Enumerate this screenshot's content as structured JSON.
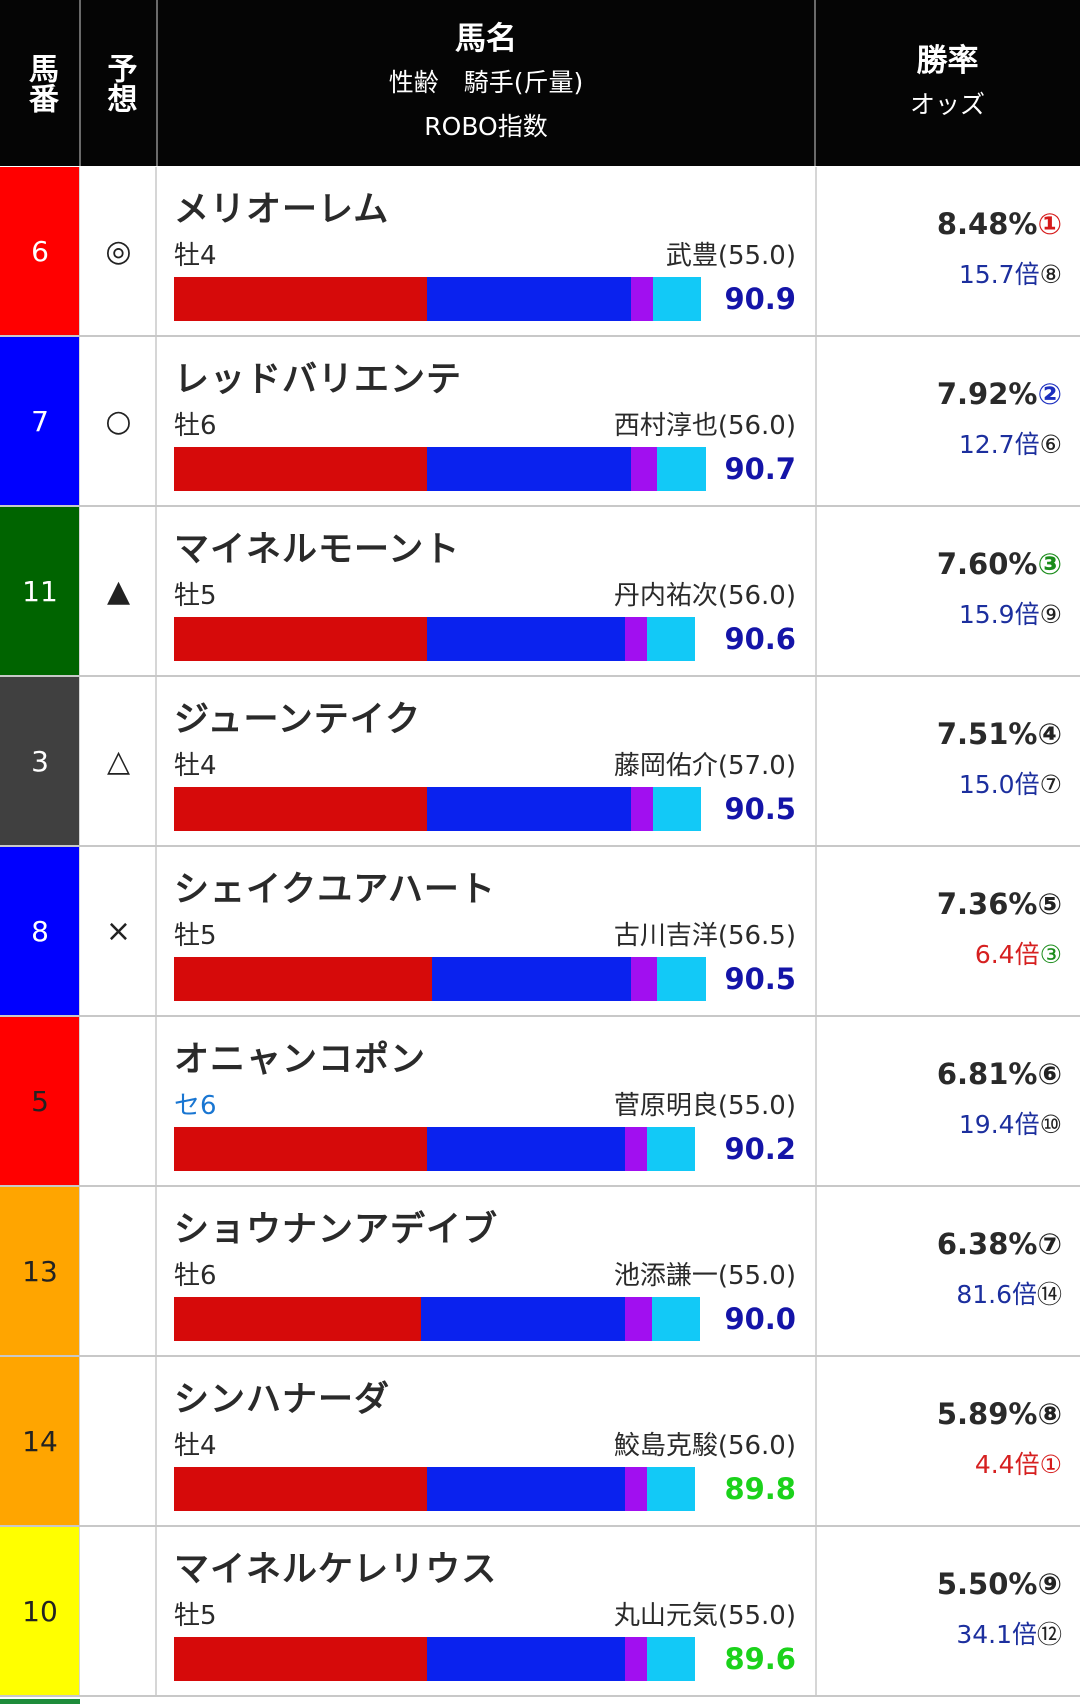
{
  "header": {
    "col_number": "馬番",
    "col_mark": "予想",
    "col_name_line1": "馬名",
    "col_name_line2": "性齢　騎手(斤量)",
    "col_name_line3": "ROBO指数",
    "col_rate_line1": "勝率",
    "col_rate_line2": "オッズ"
  },
  "colors": {
    "bar_red": "#d60a0a",
    "bar_blue": "#0a22ee",
    "bar_purple": "#a10ff0",
    "bar_cyan": "#12c9f7",
    "index_blue": "#1414a8",
    "index_green": "#1bd21b"
  },
  "rows": [
    {
      "num": "6",
      "gate_color": "#ff0000",
      "num_text_color": "#ffffff",
      "mark": "◎",
      "name": "メリオーレム",
      "sex_age": "牡4",
      "jockey": "武豊(55.0)",
      "robo": "90.9",
      "robo_color": "blue",
      "win_rate": "8.48%",
      "rank": "①",
      "rank_color": "#d61a1a",
      "odds": "15.7倍",
      "odds_color": "blue",
      "odds_rank": "⑧",
      "odds_rank_color": "#222222",
      "bar": [
        253,
        204,
        22,
        48
      ]
    },
    {
      "num": "7",
      "gate_color": "#0000ff",
      "num_text_color": "#ffffff",
      "mark": "○",
      "name": "レッドバリエンテ",
      "sex_age": "牡6",
      "jockey": "西村淳也(56.0)",
      "robo": "90.7",
      "robo_color": "blue",
      "win_rate": "7.92%",
      "rank": "②",
      "rank_color": "#1c2fbf",
      "odds": "12.7倍",
      "odds_color": "blue",
      "odds_rank": "⑥",
      "odds_rank_color": "#222222",
      "bar": [
        253,
        204,
        26,
        49
      ]
    },
    {
      "num": "11",
      "gate_color": "#006400",
      "num_text_color": "#ffffff",
      "mark": "▲",
      "name": "マイネルモーント",
      "sex_age": "牡5",
      "jockey": "丹内祐次(56.0)",
      "robo": "90.6",
      "robo_color": "blue",
      "win_rate": "7.60%",
      "rank": "③",
      "rank_color": "#1a8c1a",
      "odds": "15.9倍",
      "odds_color": "blue",
      "odds_rank": "⑨",
      "odds_rank_color": "#222222",
      "bar": [
        253,
        198,
        22,
        48
      ]
    },
    {
      "num": "3",
      "gate_color": "#404040",
      "num_text_color": "#ffffff",
      "mark": "△",
      "name": "ジューンテイク",
      "sex_age": "牡4",
      "jockey": "藤岡佑介(57.0)",
      "robo": "90.5",
      "robo_color": "blue",
      "win_rate": "7.51%",
      "rank": "④",
      "rank_color": "#222222",
      "odds": "15.0倍",
      "odds_color": "blue",
      "odds_rank": "⑦",
      "odds_rank_color": "#222222",
      "bar": [
        253,
        204,
        22,
        48
      ]
    },
    {
      "num": "8",
      "gate_color": "#0000ff",
      "num_text_color": "#ffffff",
      "mark": "×",
      "name": "シェイクユアハート",
      "sex_age": "牡5",
      "jockey": "古川吉洋(56.5)",
      "robo": "90.5",
      "robo_color": "blue",
      "win_rate": "7.36%",
      "rank": "⑤",
      "rank_color": "#222222",
      "odds": "6.4倍",
      "odds_color": "red",
      "odds_rank": "③",
      "odds_rank_color": "#1a8c1a",
      "bar": [
        258,
        199,
        26,
        49
      ]
    },
    {
      "num": "5",
      "gate_color": "#ff0000",
      "num_text_color": "#222222",
      "mark": "",
      "name": "オニャンコポン",
      "sex_age": "セ6",
      "sen": true,
      "jockey": "菅原明良(55.0)",
      "robo": "90.2",
      "robo_color": "blue",
      "win_rate": "6.81%",
      "rank": "⑥",
      "rank_color": "#222222",
      "odds": "19.4倍",
      "odds_color": "blue",
      "odds_rank": "⑩",
      "odds_rank_color": "#222222",
      "bar": [
        253,
        198,
        22,
        48
      ]
    },
    {
      "num": "13",
      "gate_color": "#ffa500",
      "num_text_color": "#222222",
      "mark": "",
      "name": "ショウナンアデイブ",
      "sex_age": "牡6",
      "jockey": "池添謙一(55.0)",
      "robo": "90.0",
      "robo_color": "blue",
      "win_rate": "6.38%",
      "rank": "⑦",
      "rank_color": "#222222",
      "odds": "81.6倍",
      "odds_color": "blue",
      "odds_rank": "⑭",
      "odds_rank_color": "#222222",
      "bar": [
        247,
        204,
        27,
        48
      ]
    },
    {
      "num": "14",
      "gate_color": "#ffa500",
      "num_text_color": "#222222",
      "mark": "",
      "name": "シンハナーダ",
      "sex_age": "牡4",
      "jockey": "鮫島克駿(56.0)",
      "robo": "89.8",
      "robo_color": "green",
      "win_rate": "5.89%",
      "rank": "⑧",
      "rank_color": "#222222",
      "odds": "4.4倍",
      "odds_color": "red",
      "odds_rank": "①",
      "odds_rank_color": "#d61a1a",
      "bar": [
        253,
        198,
        22,
        48
      ]
    },
    {
      "num": "10",
      "gate_color": "#ffff00",
      "num_text_color": "#222222",
      "mark": "",
      "name": "マイネルケレリウス",
      "sex_age": "牡5",
      "jockey": "丸山元気(55.0)",
      "robo": "89.6",
      "robo_color": "green",
      "win_rate": "5.50%",
      "rank": "⑨",
      "rank_color": "#222222",
      "odds": "34.1倍",
      "odds_color": "blue",
      "odds_rank": "⑫",
      "odds_rank_color": "#222222",
      "bar": [
        253,
        198,
        22,
        48
      ]
    }
  ]
}
